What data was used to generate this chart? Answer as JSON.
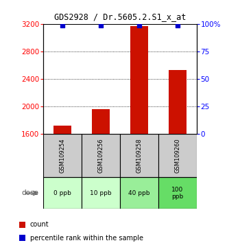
{
  "title": "GDS2928 / Dr.5605.2.S1_x_at",
  "samples": [
    "GSM109254",
    "GSM109256",
    "GSM109258",
    "GSM109260"
  ],
  "doses": [
    "0 ppb",
    "10 ppb",
    "40 ppb",
    "100\nppb"
  ],
  "counts": [
    1720,
    1960,
    3170,
    2530
  ],
  "percentiles": [
    99,
    99,
    99,
    99
  ],
  "ylim_left": [
    1600,
    3200
  ],
  "ylim_right": [
    0,
    100
  ],
  "yticks_left": [
    1600,
    2000,
    2400,
    2800,
    3200
  ],
  "yticks_right": [
    0,
    25,
    50,
    75,
    100
  ],
  "gridlines": [
    2000,
    2400,
    2800
  ],
  "bar_color": "#cc1100",
  "percentile_color": "#0000cc",
  "dose_bg_colors": [
    "#ccffcc",
    "#ccffcc",
    "#99ee99",
    "#66dd66"
  ],
  "sample_bg_color": "#cccccc",
  "legend_count_color": "#cc1100",
  "legend_pct_color": "#0000cc",
  "dose_label": "dose",
  "dose_label_color": "#555555"
}
